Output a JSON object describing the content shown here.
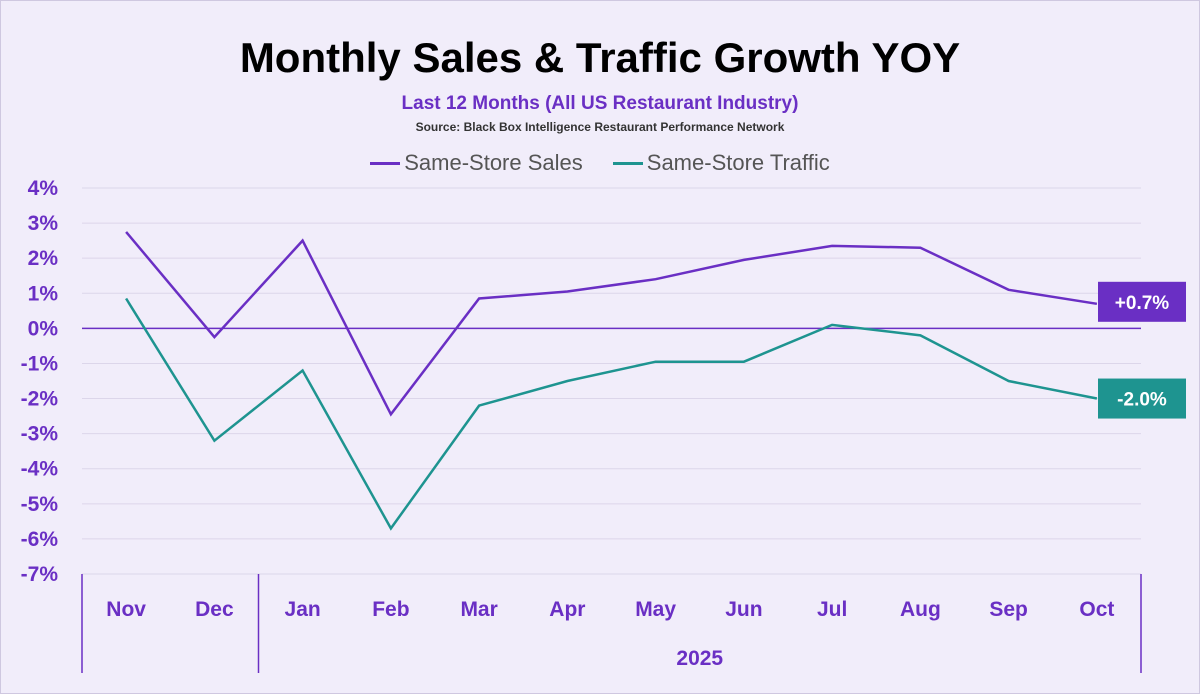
{
  "chart_data": {
    "type": "line",
    "title": "Monthly Sales & Traffic Growth YOY",
    "subtitle": "Last 12 Months (All US Restaurant Industry)",
    "source": "Source: Black Box Intelligence Restaurant Performance Network",
    "categories": [
      "Nov",
      "Dec",
      "Jan",
      "Feb",
      "Mar",
      "Apr",
      "May",
      "Jun",
      "Jul",
      "Aug",
      "Sep",
      "Oct"
    ],
    "group_label": "2025",
    "ylim": [
      -7,
      4
    ],
    "yticks": [
      "4%",
      "3%",
      "2%",
      "1%",
      "0%",
      "-1%",
      "-2%",
      "-3%",
      "-4%",
      "-5%",
      "-6%",
      "-7%"
    ],
    "grid": true,
    "legend_position": "top",
    "series": [
      {
        "name": "Same-Store Sales",
        "color": "#6a2fc4",
        "values": [
          2.75,
          -0.25,
          2.5,
          -2.45,
          0.85,
          1.05,
          1.4,
          1.95,
          2.35,
          2.3,
          1.1,
          0.7
        ],
        "end_label": "+0.7%"
      },
      {
        "name": "Same-Store Traffic",
        "color": "#1e9490",
        "values": [
          0.85,
          -3.2,
          -1.2,
          -5.7,
          -2.2,
          -1.5,
          -0.95,
          -0.95,
          0.1,
          -0.2,
          -1.5,
          -2.0
        ],
        "end_label": "-2.0%"
      }
    ]
  },
  "colors": {
    "background": "#f1edfa",
    "accent": "#6a2fc4",
    "traffic": "#1e9490",
    "grid": "#dcd6ea"
  }
}
